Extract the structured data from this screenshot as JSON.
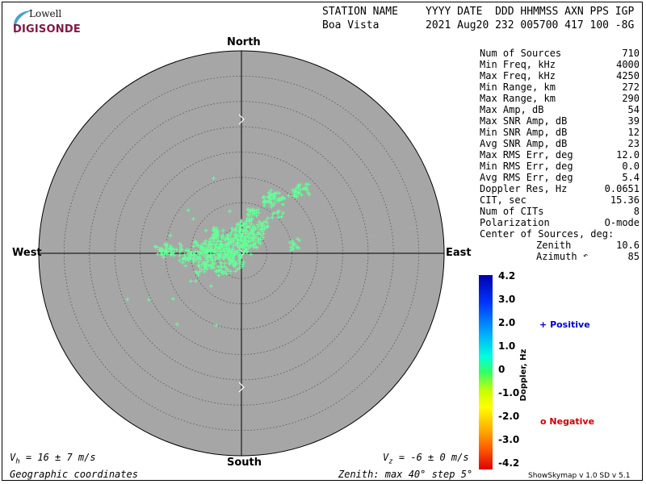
{
  "logo": {
    "line1": "Lowell",
    "line2": "DIGISONDE"
  },
  "header": {
    "row1_left": "STATION NAME",
    "row1_right": "YYYY DATE  DDD HHMMSS AXN PPS IGP",
    "row2_left": "Boa Vista",
    "row2_right": "2021 Aug20 232 005700 417 100 -8G"
  },
  "compass": {
    "north": "North",
    "south": "South",
    "east": "East",
    "west": "West"
  },
  "stats": [
    {
      "label": "Num of Sources",
      "value": "710"
    },
    {
      "label": "Min Freq, kHz",
      "value": "4000"
    },
    {
      "label": "Max Freq, kHz",
      "value": "4250"
    },
    {
      "label": "Min Range, km",
      "value": "272"
    },
    {
      "label": "Max Range, km",
      "value": "290"
    },
    {
      "label": "Max Amp, dB",
      "value": "54"
    },
    {
      "label": "Max SNR Amp, dB",
      "value": "39"
    },
    {
      "label": "Min SNR Amp, dB",
      "value": "12"
    },
    {
      "label": "Avg SNR Amp, dB",
      "value": "23"
    },
    {
      "label": "Max RMS Err, deg",
      "value": "12.0"
    },
    {
      "label": "Min RMS Err, deg",
      "value": "0.0"
    },
    {
      "label": "Avg RMS Err, deg",
      "value": "5.4"
    },
    {
      "label": "Doppler Res, Hz",
      "value": "0.0651"
    },
    {
      "label": "CIT, sec",
      "value": "15.36"
    },
    {
      "label": "Num of CITs",
      "value": "8"
    },
    {
      "label": "Polarization",
      "value": "O-mode"
    },
    {
      "label": "Center of Sources, deg:",
      "value": ""
    }
  ],
  "center": {
    "zenith_label": "Zenith",
    "zenith_value": "10.6",
    "azimuth_label": "Azimuth",
    "azimuth_value": "85"
  },
  "colorbar": {
    "ticks": [
      "4.2",
      "3.0",
      "2.0",
      "1.0",
      "0",
      "-1.0",
      "-2.0",
      "-3.0",
      "-4.2"
    ],
    "label": "Doppler, Hz",
    "positive": "Positive",
    "negative": "Negative",
    "positive_color": "#0000cc",
    "negative_color": "#cc0000"
  },
  "bottom": {
    "vh": "= 16 ± 7 m/s",
    "vz": "= -6 ± 0 m/s",
    "coords": "Geographic coordinates",
    "zenith": "Zenith: max 40°  step 5°",
    "version": "ShowSkymap v 1.0  SD v 5.1"
  },
  "chart_data": {
    "type": "scatter",
    "title": "",
    "projection": "polar skymap",
    "zenith_max_deg": 40,
    "zenith_step_deg": 5,
    "marker_color": "#66ff99",
    "series": [
      {
        "name": "Positive",
        "comment": "approximate x,y offsets from zenith in degrees (east +x, north +y)",
        "points": [
          [
            -15.9,
            0.9
          ],
          [
            -15.0,
            0.5
          ],
          [
            -14.5,
            0.2
          ],
          [
            -12.8,
            0.7
          ],
          [
            -11.2,
            -0.3
          ],
          [
            -10.5,
            -1.1
          ],
          [
            -9.4,
            -0.2
          ],
          [
            -8.5,
            1.6
          ],
          [
            -8.4,
            -1.7
          ],
          [
            -7.9,
            -3.2
          ],
          [
            -7.6,
            0.8
          ],
          [
            -7.1,
            0.1
          ],
          [
            -6.9,
            1.1
          ],
          [
            -6.8,
            -2.3
          ],
          [
            -6.4,
            2.2
          ],
          [
            -6.2,
            -0.6
          ],
          [
            -5.8,
            0.7
          ],
          [
            -5.6,
            -1.9
          ],
          [
            -5.3,
            2.9
          ],
          [
            -5.0,
            1.3
          ],
          [
            -4.8,
            -0.1
          ],
          [
            -4.6,
            4.2
          ],
          [
            -4.3,
            -3.3
          ],
          [
            -4.0,
            2.3
          ],
          [
            -3.8,
            0.3
          ],
          [
            -3.5,
            -1.1
          ],
          [
            -3.2,
            1.7
          ],
          [
            -3.0,
            -2.9
          ],
          [
            -2.8,
            3.0
          ],
          [
            -2.5,
            0.6
          ],
          [
            -2.3,
            -0.8
          ],
          [
            -2.0,
            2.1
          ],
          [
            -1.7,
            1.0
          ],
          [
            -1.5,
            -2.4
          ],
          [
            -1.2,
            4.7
          ],
          [
            -0.9,
            0.2
          ],
          [
            -0.7,
            2.6
          ],
          [
            -0.4,
            -1.4
          ],
          [
            -0.2,
            3.8
          ],
          [
            0.1,
            1.4
          ],
          [
            0.4,
            5.5
          ],
          [
            0.6,
            2.7
          ],
          [
            0.9,
            3.9
          ],
          [
            1.1,
            0.8
          ],
          [
            1.5,
            5.2
          ],
          [
            1.8,
            2.9
          ],
          [
            2.2,
            7.7
          ],
          [
            2.8,
            2.1
          ],
          [
            3.3,
            4.1
          ],
          [
            4.1,
            5.8
          ],
          [
            5.4,
            10.4
          ],
          [
            6.6,
            11.3
          ],
          [
            7.5,
            10.4
          ],
          [
            10.4,
            12.0
          ],
          [
            12.3,
            12.7
          ],
          [
            10.5,
            1.8
          ],
          [
            7.2,
            8.0
          ],
          [
            -6.0,
            -6.5
          ],
          [
            -9.0,
            -5.5
          ],
          [
            -13.5,
            -9.0
          ],
          [
            -12.7,
            -14.0
          ],
          [
            -18.3,
            -9.2
          ],
          [
            -22.5,
            -9.1
          ],
          [
            -5.0,
            -14.2
          ],
          [
            -10.0,
            -5.5
          ],
          [
            -11.0,
            -2.5
          ],
          [
            -12.2,
            1.9
          ],
          [
            -14.0,
            3.5
          ],
          [
            -10.5,
            8.5
          ],
          [
            -5.5,
            14.8
          ],
          [
            -9.5,
            6.8
          ],
          [
            -7.0,
            4.5
          ],
          [
            -2.3,
            8.3
          ]
        ]
      },
      {
        "name": "Negative",
        "points": []
      }
    ]
  }
}
